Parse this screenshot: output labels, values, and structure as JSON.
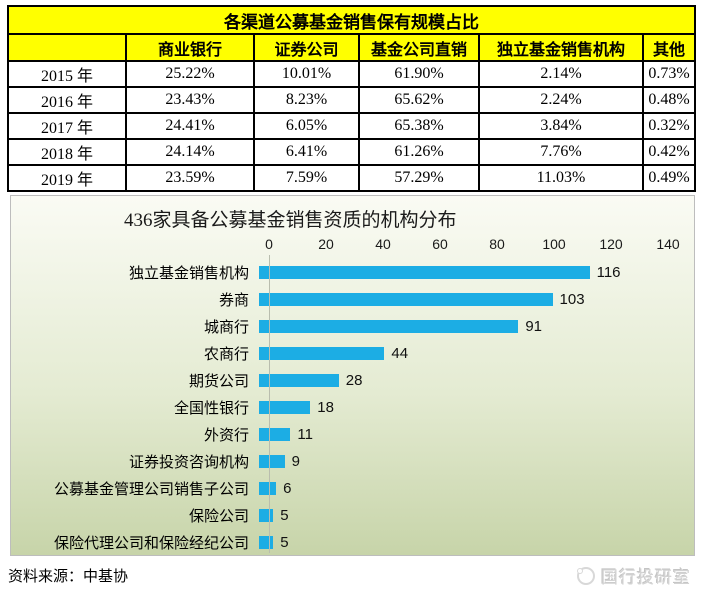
{
  "table": {
    "title": "各渠道公募基金销售保有规模占比",
    "columns": [
      "",
      "商业银行",
      "证券公司",
      "基金公司直销",
      "独立基金销售机构",
      "其他"
    ],
    "rows": [
      [
        "2015 年",
        "25.22%",
        "10.01%",
        "61.90%",
        "2.14%",
        "0.73%"
      ],
      [
        "2016 年",
        "23.43%",
        "8.23%",
        "65.62%",
        "2.24%",
        "0.48%"
      ],
      [
        "2017 年",
        "24.41%",
        "6.05%",
        "65.38%",
        "3.84%",
        "0.32%"
      ],
      [
        "2018 年",
        "24.14%",
        "6.41%",
        "61.26%",
        "7.76%",
        "0.42%"
      ],
      [
        "2019 年",
        "23.59%",
        "7.59%",
        "57.29%",
        "11.03%",
        "0.49%"
      ]
    ]
  },
  "chart_data": {
    "type": "bar",
    "orientation": "horizontal",
    "title": "436家具备公募基金销售资质的机构分布",
    "categories": [
      "独立基金销售机构",
      "券商",
      "城商行",
      "农商行",
      "期货公司",
      "全国性银行",
      "外资行",
      "证券投资咨询机构",
      "公募基金管理公司销售子公司",
      "保险公司",
      "保险代理公司和保险经纪公司"
    ],
    "values": [
      116,
      103,
      91,
      44,
      28,
      18,
      11,
      9,
      6,
      5,
      5
    ],
    "xlim": [
      0,
      140
    ],
    "ticks": [
      "0",
      "20",
      "40",
      "60",
      "80",
      "100",
      "120",
      "140"
    ],
    "axis_position": "top",
    "grid": false,
    "legend": false
  },
  "footer": {
    "source": "资料来源：中基协",
    "logo_text": "国行投研室"
  },
  "colors": {
    "bar": "#1CADE4",
    "table_header_bg": "#FFFF00",
    "chart_bg_top": "#FAFBF4",
    "chart_bg_mid": "#E4EBD2",
    "chart_bg_bottom": "#C7D4A9"
  }
}
